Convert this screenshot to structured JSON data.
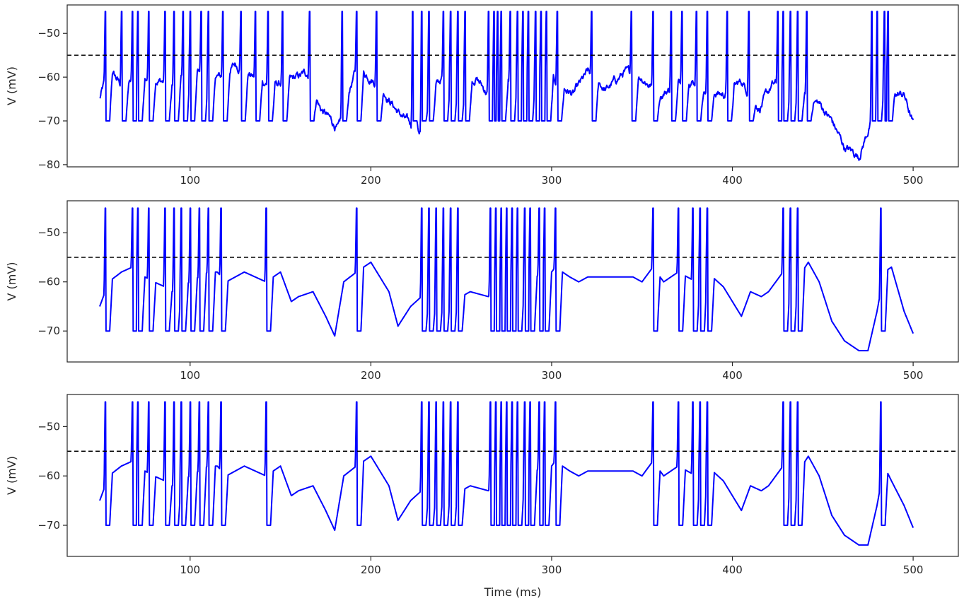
{
  "figure": {
    "colors": {
      "trace": "#0000ff",
      "threshold": "#000000",
      "axes": "#262626"
    }
  },
  "chart_data": [
    {
      "type": "line",
      "title": "",
      "xlabel": "",
      "ylabel": "V (mV)",
      "xlim": [
        32,
        525
      ],
      "ylim": [
        -80.5,
        -43.5
      ],
      "xticks": [
        100,
        200,
        300,
        400,
        500
      ],
      "yticks": [
        -80,
        -70,
        -60,
        -50
      ],
      "grid": false,
      "threshold": -55,
      "noise": 1.0,
      "spike_times": [
        53,
        62,
        68,
        71,
        77,
        86,
        91,
        96,
        100,
        106,
        110,
        118,
        128,
        136,
        143,
        151,
        166,
        184,
        192,
        203,
        223,
        228,
        232,
        240,
        244,
        248,
        252,
        265,
        268,
        270,
        272,
        277,
        281,
        284,
        287,
        291,
        294,
        297,
        303,
        322,
        344,
        356,
        366,
        372,
        380,
        386,
        397,
        409,
        425,
        428,
        432,
        436,
        441,
        477,
        480,
        484,
        486
      ],
      "series": [
        {
          "name": "",
          "x": [
            50,
            55,
            62,
            70,
            80,
            90,
            95,
            102,
            110,
            118,
            125,
            135,
            145,
            155,
            165,
            172,
            178,
            182,
            186,
            192,
            200,
            207,
            215,
            222,
            226,
            232,
            240,
            250,
            258,
            265,
            272,
            280,
            288,
            298,
            305,
            312,
            320,
            330,
            340,
            350,
            360,
            368,
            376,
            385,
            395,
            405,
            415,
            422,
            430,
            440,
            448,
            455,
            462,
            470,
            477,
            482,
            486,
            490,
            495,
            500
          ],
          "y": [
            -65,
            -58,
            -62,
            -61,
            -60,
            -62,
            -60,
            -58,
            -60,
            -60,
            -57,
            -60,
            -62,
            -61,
            -59,
            -67,
            -70,
            -72,
            -66,
            -58,
            -60,
            -63,
            -68,
            -71,
            -74,
            -64,
            -60,
            -62,
            -60,
            -64,
            -62,
            -60,
            -61,
            -60,
            -62,
            -64,
            -59,
            -63,
            -59,
            -60,
            -64,
            -62,
            -60,
            -63,
            -64,
            -61,
            -67,
            -62,
            -61,
            -64,
            -66,
            -70,
            -76,
            -78,
            -70,
            -62,
            -60,
            -64,
            -64,
            -71
          ]
        }
      ]
    },
    {
      "type": "line",
      "title": "",
      "xlabel": "",
      "ylabel": "V (mV)",
      "xlim": [
        32,
        525
      ],
      "ylim": [
        -76.3,
        -43.5
      ],
      "xticks": [
        100,
        200,
        300,
        400,
        500
      ],
      "yticks": [
        -70,
        -60,
        -50
      ],
      "grid": false,
      "threshold": -55,
      "noise": 0,
      "spike_times": [
        53,
        68,
        71,
        77,
        86,
        91,
        95,
        100,
        105,
        110,
        117,
        142,
        192,
        228,
        232,
        236,
        240,
        244,
        248,
        266,
        269,
        272,
        275,
        278,
        281,
        285,
        288,
        293,
        296,
        302,
        356,
        370,
        378,
        382,
        386,
        428,
        432,
        436,
        482
      ],
      "series": [
        {
          "name": "",
          "x": [
            50,
            55,
            62,
            68,
            75,
            80,
            86,
            90,
            100,
            110,
            115,
            120,
            130,
            142,
            150,
            156,
            160,
            168,
            175,
            180,
            185,
            192,
            200,
            210,
            215,
            222,
            228,
            235,
            245,
            250,
            255,
            265,
            270,
            300,
            302,
            310,
            315,
            320,
            330,
            336,
            345,
            350,
            356,
            362,
            370,
            380,
            386,
            395,
            405,
            410,
            416,
            420,
            428,
            435,
            442,
            448,
            455,
            462,
            470,
            475,
            480,
            484,
            488,
            495,
            500
          ],
          "y": [
            -65,
            -60,
            -58,
            -57,
            -59,
            -60,
            -61,
            -62,
            -60,
            -58,
            -58,
            -60,
            -58,
            -60,
            -58,
            -64,
            -63,
            -62,
            -67,
            -71,
            -60,
            -58,
            -56,
            -62,
            -69,
            -65,
            -63,
            -63,
            -62,
            -63,
            -62,
            -63,
            -61,
            -58,
            -57,
            -59,
            -60,
            -59,
            -59,
            -59,
            -59,
            -60,
            -57,
            -60,
            -58,
            -60,
            -58,
            -61,
            -67,
            -62,
            -63,
            -62,
            -58,
            -60,
            -56,
            -60,
            -68,
            -72,
            -74,
            -74,
            -66,
            -58,
            -57,
            -66,
            -70.5
          ]
        }
      ]
    },
    {
      "type": "line",
      "title": "",
      "xlabel": "Time (ms)",
      "ylabel": "V (mV)",
      "xlim": [
        32,
        525
      ],
      "ylim": [
        -76.3,
        -43.5
      ],
      "xticks": [
        100,
        200,
        300,
        400,
        500
      ],
      "yticks": [
        -70,
        -60,
        -50
      ],
      "grid": false,
      "threshold": -55,
      "noise": 0,
      "spike_times": [
        53,
        68,
        71,
        77,
        86,
        91,
        95,
        100,
        105,
        110,
        117,
        142,
        192,
        228,
        232,
        236,
        240,
        244,
        248,
        266,
        269,
        272,
        275,
        278,
        281,
        285,
        288,
        293,
        296,
        302,
        356,
        370,
        378,
        382,
        386,
        428,
        432,
        436,
        482
      ],
      "series": [
        {
          "name": "",
          "x": [
            50,
            55,
            62,
            68,
            75,
            80,
            86,
            90,
            100,
            110,
            115,
            120,
            130,
            142,
            150,
            156,
            160,
            168,
            175,
            180,
            185,
            192,
            200,
            210,
            215,
            222,
            228,
            235,
            245,
            250,
            255,
            265,
            270,
            300,
            302,
            310,
            315,
            320,
            330,
            336,
            345,
            350,
            356,
            362,
            370,
            380,
            386,
            395,
            405,
            410,
            416,
            420,
            428,
            435,
            442,
            448,
            455,
            462,
            470,
            475,
            480,
            484,
            488,
            495,
            500
          ],
          "y": [
            -65,
            -60,
            -58,
            -57,
            -59,
            -60,
            -61,
            -62,
            -60,
            -58,
            -58,
            -60,
            -58,
            -60,
            -58,
            -64,
            -63,
            -62,
            -67,
            -71,
            -60,
            -58,
            -56,
            -62,
            -69,
            -65,
            -63,
            -63,
            -62,
            -63,
            -62,
            -63,
            -61,
            -58,
            -57,
            -59,
            -60,
            -59,
            -59,
            -59,
            -59,
            -60,
            -57,
            -60,
            -58,
            -60,
            -58,
            -61,
            -67,
            -62,
            -63,
            -62,
            -58,
            -60,
            -56,
            -60,
            -68,
            -72,
            -74,
            -74,
            -66,
            -58,
            -61,
            -66,
            -70.5
          ]
        }
      ]
    }
  ]
}
